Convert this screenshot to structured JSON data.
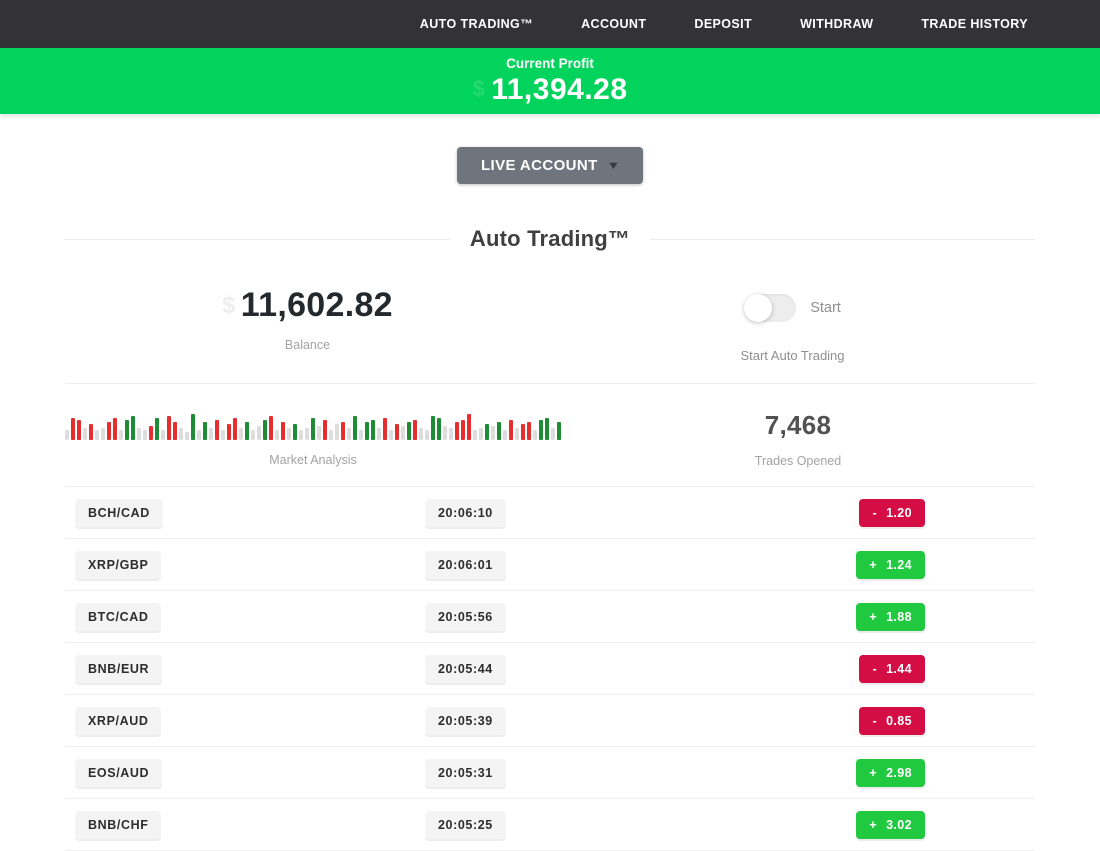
{
  "nav": {
    "items": [
      {
        "label": "AUTO TRADING™"
      },
      {
        "label": "ACCOUNT"
      },
      {
        "label": "DEPOSIT"
      },
      {
        "label": "WITHDRAW"
      },
      {
        "label": "TRADE HISTORY"
      }
    ]
  },
  "profit_banner": {
    "label": "Current Profit",
    "value": "11,394.28",
    "currency_hint": "$",
    "bg_color": "#02d35c"
  },
  "account_selector": {
    "label": "LIVE ACCOUNT",
    "caret": "▼"
  },
  "section": {
    "title": "Auto Trading™"
  },
  "stats": {
    "balance": {
      "value": "11,602.82",
      "label": "Balance"
    },
    "auto_trading": {
      "toggle_label": "Start",
      "caption": "Start Auto Trading",
      "toggle_state": "off"
    },
    "market": {
      "label": "Market Analysis"
    },
    "trades_opened": {
      "value": "7,468",
      "label": "Trades Opened"
    }
  },
  "chart_data": {
    "type": "bar",
    "title": "Market Analysis",
    "note": "decorative candlestick-style strip, bottom-aligned bars",
    "colors": {
      "r": "#e62e2e",
      "g": "#1e8c35",
      "n": "#dddddd"
    },
    "bars": [
      "n10",
      "r22",
      "r20",
      "n12",
      "r16",
      "n10",
      "n12",
      "r18",
      "r22",
      "n10",
      "g20",
      "g24",
      "n12",
      "n10",
      "r14",
      "g22",
      "n10",
      "r24",
      "r18",
      "n12",
      "n8",
      "g26",
      "n10",
      "g18",
      "n12",
      "r20",
      "n10",
      "r16",
      "r22",
      "n12",
      "g18",
      "n10",
      "n14",
      "g20",
      "r24",
      "n10",
      "r18",
      "n12",
      "g16",
      "n10",
      "n12",
      "g22",
      "n14",
      "r20",
      "n10",
      "n16",
      "r18",
      "n12",
      "g24",
      "n10",
      "g18",
      "g20",
      "n12",
      "r22",
      "n10",
      "r16",
      "n14",
      "g18",
      "r20",
      "n12",
      "n10",
      "g24",
      "g22",
      "n14",
      "n12",
      "r18",
      "r20",
      "r26",
      "n10",
      "n12",
      "g16",
      "n14",
      "g18",
      "n10",
      "r20",
      "n12",
      "r16",
      "r18",
      "n10",
      "g20",
      "g22",
      "n12",
      "g18"
    ]
  },
  "trades": [
    {
      "pair": "BCH/CAD",
      "time": "20:06:10",
      "sign": "-",
      "value": "1.20",
      "dir": "loss"
    },
    {
      "pair": "XRP/GBP",
      "time": "20:06:01",
      "sign": "+",
      "value": "1.24",
      "dir": "gain"
    },
    {
      "pair": "BTC/CAD",
      "time": "20:05:56",
      "sign": "+",
      "value": "1.88",
      "dir": "gain"
    },
    {
      "pair": "BNB/EUR",
      "time": "20:05:44",
      "sign": "-",
      "value": "1.44",
      "dir": "loss"
    },
    {
      "pair": "XRP/AUD",
      "time": "20:05:39",
      "sign": "-",
      "value": "0.85",
      "dir": "loss"
    },
    {
      "pair": "EOS/AUD",
      "time": "20:05:31",
      "sign": "+",
      "value": "2.98",
      "dir": "gain"
    },
    {
      "pair": "BNB/CHF",
      "time": "20:05:25",
      "sign": "+",
      "value": "3.02",
      "dir": "gain"
    }
  ],
  "colors": {
    "nav_bg": "#333336",
    "banner_green": "#02d35c",
    "button_gray": "#6e757c",
    "loss_red": "#d40d45",
    "gain_green": "#20c93f"
  }
}
